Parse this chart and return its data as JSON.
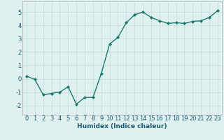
{
  "x": [
    0,
    1,
    2,
    3,
    4,
    5,
    6,
    7,
    8,
    9,
    10,
    11,
    12,
    13,
    14,
    15,
    16,
    17,
    18,
    19,
    20,
    21,
    22,
    23
  ],
  "y": [
    0.2,
    -0.05,
    -1.2,
    -1.1,
    -1.0,
    -0.6,
    -1.9,
    -1.4,
    -1.4,
    0.4,
    2.6,
    3.1,
    4.2,
    4.8,
    5.0,
    4.6,
    4.35,
    4.15,
    4.2,
    4.15,
    4.3,
    4.35,
    4.6,
    5.1
  ],
  "line_color": "#1a7a6e",
  "marker": "D",
  "marker_size": 2.0,
  "bg_color": "#dff0f0",
  "grid_color": "#c8dede",
  "xlabel": "Humidex (Indice chaleur)",
  "xlim": [
    -0.5,
    23.5
  ],
  "ylim": [
    -2.7,
    5.8
  ],
  "xticks": [
    0,
    1,
    2,
    3,
    4,
    5,
    6,
    7,
    8,
    9,
    10,
    11,
    12,
    13,
    14,
    15,
    16,
    17,
    18,
    19,
    20,
    21,
    22,
    23
  ],
  "yticks": [
    -2,
    -1,
    0,
    1,
    2,
    3,
    4,
    5
  ],
  "xlabel_fontsize": 6.5,
  "tick_fontsize": 6.0,
  "linewidth": 1.0,
  "xlabel_color": "#1a5a6e",
  "tick_color": "#1a5a6e"
}
